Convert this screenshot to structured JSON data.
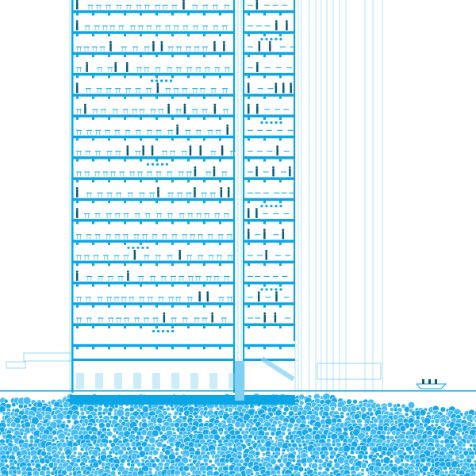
{
  "drawing": {
    "type": "building-section",
    "floors": 16,
    "colors": {
      "structure": "#0aa6e6",
      "line": "#7fd0f2",
      "people": "#0b5a7a",
      "rock": "#1aa9e8",
      "rock_light": "#45bdf0",
      "background": "#ffffff"
    },
    "icon_names": [
      "person-figure",
      "desk-chair",
      "pendant-lamp",
      "boat",
      "label-tag"
    ]
  }
}
